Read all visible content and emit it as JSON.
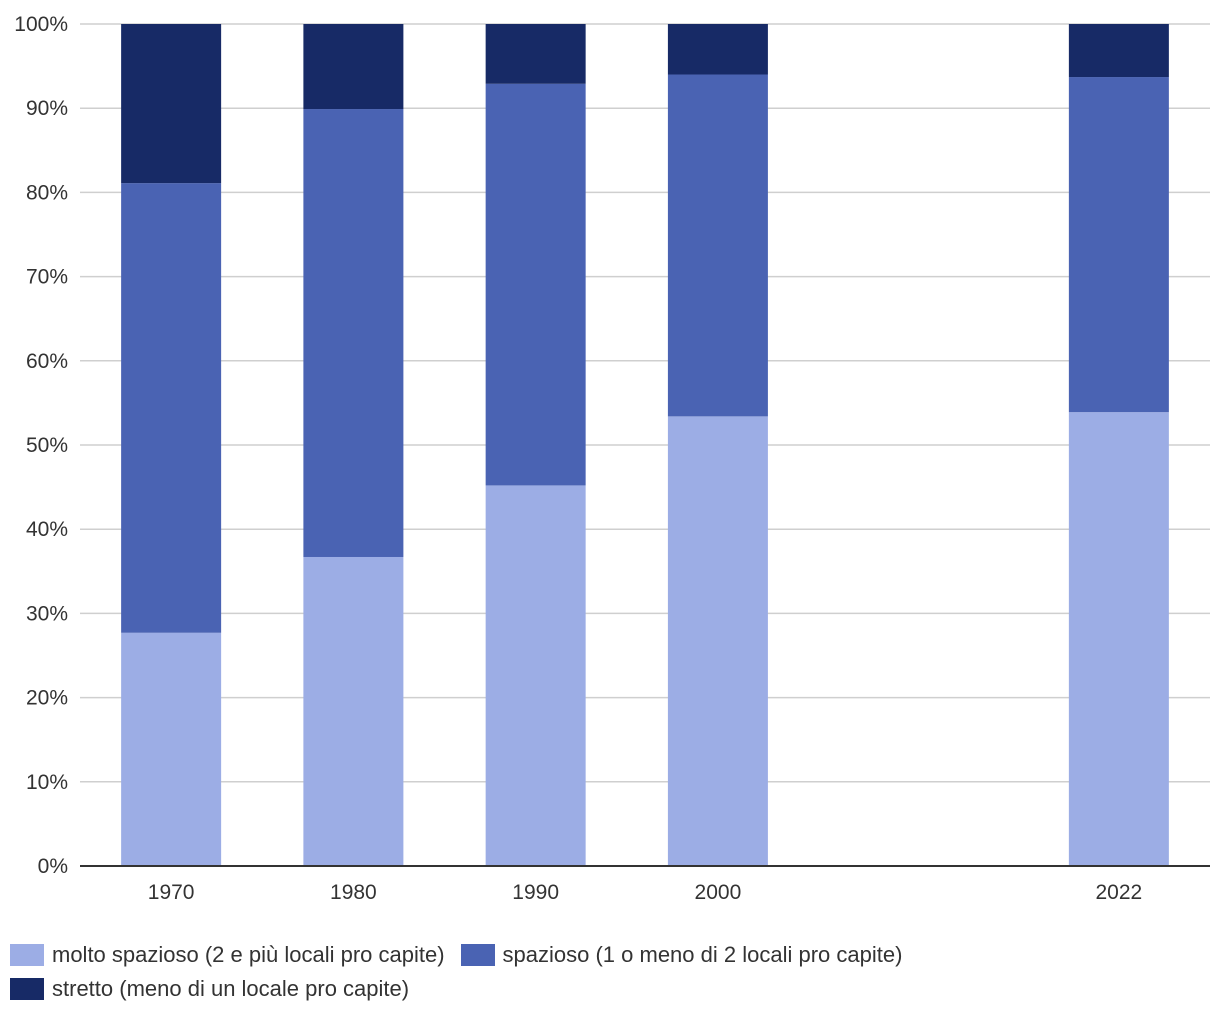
{
  "chart_data": {
    "type": "bar",
    "stacked": true,
    "categories": [
      "1970",
      "1980",
      "1990",
      "2000",
      "2022"
    ],
    "category_positions": [
      1970,
      1980,
      1990,
      2000,
      2022
    ],
    "series": [
      {
        "name": "molto spazioso (2 e più locali pro capite)",
        "color": "#9cade5",
        "values": [
          27.7,
          36.7,
          45.2,
          53.4,
          53.9
        ]
      },
      {
        "name": "spazioso (1 o meno di 2 locali pro capite)",
        "color": "#4a63b3",
        "values": [
          53.4,
          53.2,
          47.7,
          40.6,
          39.8
        ]
      },
      {
        "name": "stretto (meno di un locale pro capite)",
        "color": "#172a66",
        "values": [
          18.9,
          10.1,
          7.1,
          6.0,
          6.3
        ]
      }
    ],
    "y_ticks": [
      "0%",
      "10%",
      "20%",
      "30%",
      "40%",
      "50%",
      "60%",
      "70%",
      "80%",
      "90%",
      "100%"
    ],
    "ylim": [
      0,
      100
    ],
    "xlim": [
      1965,
      2027
    ],
    "grid": true,
    "legend_position": "bottom-left",
    "title": "",
    "xlabel": "",
    "ylabel": ""
  },
  "legend": {
    "items": [
      {
        "label": "molto spazioso (2 e più locali pro capite)",
        "color": "#9cade5"
      },
      {
        "label": "spazioso (1 o meno di 2 locali pro capite)",
        "color": "#4a63b3"
      },
      {
        "label": "stretto (meno di un locale pro capite)",
        "color": "#172a66"
      }
    ]
  }
}
